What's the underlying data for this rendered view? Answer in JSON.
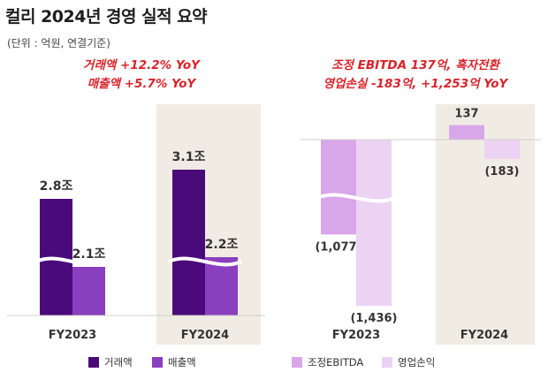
{
  "title": "컬리 2024년 경영 실적 요약",
  "unit_note": "(단위 : 억원, 연결기준)",
  "colors": {
    "gmv": "#4b0a7a",
    "revenue": "#8a3fbf",
    "ebitda": "#d9a6ea",
    "op_loss": "#ecd3f3",
    "highlight_bg": "#f1ece3",
    "annotation": "#d8232a"
  },
  "left_annotation": [
    "거래액 +12.2% YoY",
    "매출액 +5.7% YoY"
  ],
  "right_annotation": [
    "조정 EBITDA 137억, 흑자전환",
    "영업손실 -183억, +1,253억 YoY"
  ],
  "chart_data": [
    {
      "type": "bar",
      "categories": [
        "FY2023",
        "FY2024"
      ],
      "highlight_category": "FY2024",
      "axis_break": true,
      "series": [
        {
          "name": "거래액",
          "values": [
            2.8,
            3.1
          ],
          "labels": [
            "2.8조",
            "3.1조"
          ],
          "color": "#4b0a7a"
        },
        {
          "name": "매출액",
          "values": [
            2.1,
            2.2
          ],
          "labels": [
            "2.1조",
            "2.2조"
          ],
          "color": "#8a3fbf"
        }
      ]
    },
    {
      "type": "bar",
      "categories": [
        "FY2023",
        "FY2024"
      ],
      "highlight_category": "FY2024",
      "axis_break": true,
      "series": [
        {
          "name": "조정EBITDA",
          "values": [
            -1077,
            137
          ],
          "labels": [
            "(1,077)",
            "137"
          ],
          "color": "#d9a6ea"
        },
        {
          "name": "영업손익",
          "values": [
            -1436,
            -183
          ],
          "labels": [
            "(1,436)",
            "(183)"
          ],
          "color": "#ecd3f3"
        }
      ]
    }
  ]
}
